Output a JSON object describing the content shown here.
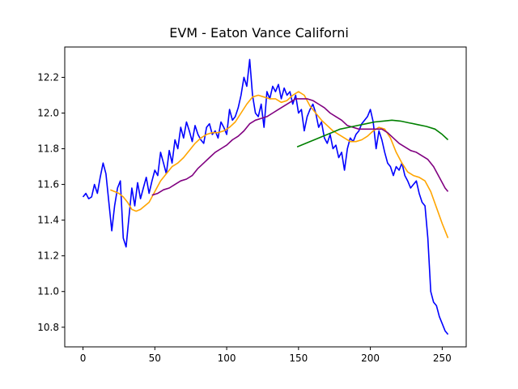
{
  "chart_data": {
    "type": "line",
    "title": "EVM - Eaton Vance Californi",
    "xlabel": "",
    "ylabel": "",
    "xlim": [
      -12.7,
      266.7
    ],
    "ylim": [
      10.69,
      12.37
    ],
    "xticks": [
      0,
      50,
      100,
      150,
      200,
      250
    ],
    "yticks": [
      10.8,
      11.0,
      11.2,
      11.4,
      11.6,
      11.8,
      12.0,
      12.2
    ],
    "xtick_labels": [
      "0",
      "50",
      "100",
      "150",
      "200",
      "250"
    ],
    "ytick_labels": [
      "10.8",
      "11.0",
      "11.2",
      "11.4",
      "11.6",
      "11.8",
      "12.0",
      "12.2"
    ],
    "grid": false,
    "series": [
      {
        "color": "#0000ff",
        "x": [
          0,
          2,
          4,
          6,
          8,
          10,
          12,
          14,
          16,
          18,
          20,
          22,
          24,
          26,
          28,
          30,
          32,
          34,
          36,
          38,
          40,
          42,
          44,
          46,
          48,
          50,
          52,
          54,
          56,
          58,
          60,
          62,
          64,
          66,
          68,
          70,
          72,
          74,
          76,
          78,
          80,
          82,
          84,
          86,
          88,
          90,
          92,
          94,
          96,
          98,
          100,
          102,
          104,
          106,
          108,
          110,
          112,
          114,
          116,
          118,
          120,
          122,
          124,
          126,
          128,
          130,
          132,
          134,
          136,
          138,
          140,
          142,
          144,
          146,
          148,
          150,
          152,
          154,
          156,
          158,
          160,
          162,
          164,
          166,
          168,
          170,
          172,
          174,
          176,
          178,
          180,
          182,
          184,
          186,
          188,
          190,
          192,
          194,
          196,
          198,
          200,
          202,
          204,
          206,
          208,
          210,
          212,
          214,
          216,
          218,
          220,
          222,
          224,
          226,
          228,
          230,
          232,
          234,
          236,
          238,
          240,
          242,
          244,
          246,
          248,
          250,
          252,
          254
        ],
        "values": [
          11.53,
          11.55,
          11.52,
          11.53,
          11.6,
          11.55,
          11.64,
          11.72,
          11.66,
          11.5,
          11.34,
          11.48,
          11.58,
          11.62,
          11.3,
          11.25,
          11.42,
          11.58,
          11.48,
          11.61,
          11.52,
          11.58,
          11.64,
          11.55,
          11.62,
          11.68,
          11.65,
          11.78,
          11.72,
          11.66,
          11.79,
          11.72,
          11.85,
          11.8,
          11.92,
          11.86,
          11.95,
          11.9,
          11.84,
          11.93,
          11.88,
          11.85,
          11.83,
          11.92,
          11.94,
          11.88,
          11.9,
          11.86,
          11.95,
          11.92,
          11.88,
          12.02,
          11.96,
          11.98,
          12.03,
          12.1,
          12.2,
          12.15,
          12.3,
          12.1,
          12.0,
          11.98,
          12.05,
          11.92,
          12.12,
          12.08,
          12.15,
          12.12,
          12.16,
          12.08,
          12.14,
          12.1,
          12.12,
          12.05,
          12.1,
          12.0,
          12.02,
          11.9,
          11.98,
          12.02,
          12.05,
          12.0,
          11.92,
          11.95,
          11.86,
          11.83,
          11.88,
          11.8,
          11.82,
          11.75,
          11.78,
          11.68,
          11.8,
          11.86,
          11.84,
          11.88,
          11.9,
          11.94,
          11.96,
          11.98,
          12.02,
          11.95,
          11.8,
          11.9,
          11.85,
          11.78,
          11.72,
          11.7,
          11.65,
          11.7,
          11.68,
          11.72,
          11.65,
          11.62,
          11.58,
          11.6,
          11.62,
          11.55,
          11.5,
          11.48,
          11.3,
          11.0,
          10.94,
          10.92,
          10.86,
          10.82,
          10.78,
          10.76
        ]
      },
      {
        "color": "#ffa500",
        "x": [
          19,
          22,
          25,
          28,
          31,
          34,
          37,
          40,
          43,
          46,
          50,
          54,
          58,
          62,
          66,
          70,
          74,
          78,
          82,
          86,
          90,
          94,
          98,
          102,
          106,
          110,
          114,
          118,
          122,
          126,
          130,
          134,
          138,
          142,
          146,
          150,
          154,
          158,
          162,
          166,
          170,
          174,
          178,
          182,
          186,
          190,
          194,
          198,
          202,
          206,
          210,
          214,
          218,
          222,
          226,
          230,
          234,
          238,
          242,
          246,
          250,
          254
        ],
        "values": [
          11.57,
          11.56,
          11.55,
          11.53,
          11.5,
          11.46,
          11.45,
          11.46,
          11.48,
          11.5,
          11.56,
          11.62,
          11.66,
          11.7,
          11.72,
          11.75,
          11.79,
          11.83,
          11.86,
          11.88,
          11.89,
          11.89,
          11.9,
          11.92,
          11.95,
          12.0,
          12.05,
          12.09,
          12.1,
          12.09,
          12.08,
          12.08,
          12.06,
          12.07,
          12.1,
          12.12,
          12.1,
          12.04,
          12.0,
          11.96,
          11.93,
          11.9,
          11.88,
          11.86,
          11.84,
          11.84,
          11.85,
          11.87,
          11.9,
          11.92,
          11.91,
          11.86,
          11.78,
          11.72,
          11.67,
          11.65,
          11.64,
          11.62,
          11.56,
          11.47,
          11.38,
          11.3
        ]
      },
      {
        "color": "#800080",
        "x": [
          48,
          52,
          56,
          60,
          64,
          68,
          72,
          76,
          80,
          84,
          88,
          92,
          96,
          100,
          104,
          108,
          112,
          116,
          120,
          124,
          128,
          132,
          136,
          140,
          144,
          148,
          152,
          156,
          160,
          164,
          168,
          172,
          176,
          180,
          184,
          188,
          192,
          196,
          200,
          204,
          208,
          212,
          216,
          220,
          224,
          228,
          232,
          236,
          240,
          244,
          248,
          252,
          254
        ],
        "values": [
          11.54,
          11.55,
          11.57,
          11.58,
          11.6,
          11.62,
          11.63,
          11.65,
          11.69,
          11.72,
          11.75,
          11.78,
          11.8,
          11.82,
          11.85,
          11.87,
          11.9,
          11.94,
          11.96,
          11.97,
          11.98,
          12.0,
          12.02,
          12.04,
          12.06,
          12.08,
          12.08,
          12.08,
          12.07,
          12.05,
          12.03,
          12.0,
          11.98,
          11.96,
          11.93,
          11.92,
          11.91,
          11.91,
          11.91,
          11.91,
          11.91,
          11.89,
          11.86,
          11.83,
          11.81,
          11.79,
          11.78,
          11.76,
          11.74,
          11.7,
          11.64,
          11.58,
          11.56
        ]
      },
      {
        "color": "#008000",
        "x": [
          149,
          155,
          161,
          167,
          173,
          179,
          185,
          191,
          197,
          203,
          209,
          215,
          221,
          227,
          233,
          239,
          245,
          250,
          254
        ],
        "values": [
          11.81,
          11.83,
          11.85,
          11.87,
          11.89,
          11.91,
          11.92,
          11.93,
          11.94,
          11.95,
          11.955,
          11.96,
          11.955,
          11.945,
          11.935,
          11.925,
          11.91,
          11.88,
          11.85
        ]
      }
    ]
  }
}
